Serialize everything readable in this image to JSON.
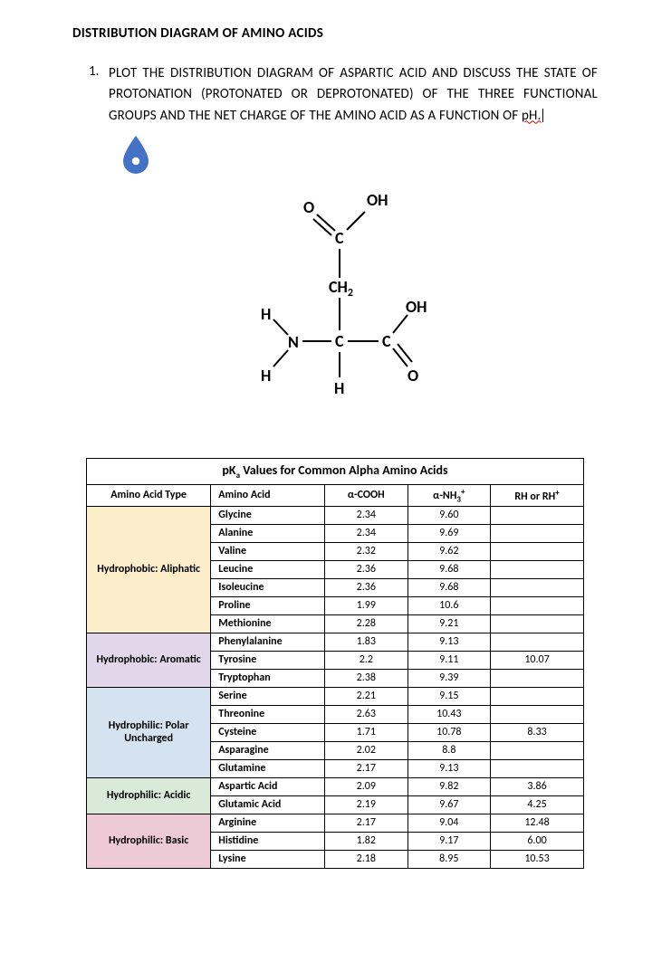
{
  "title": "DISTRIBUTION DIAGRAM OF AMINO ACIDS",
  "question": {
    "number": "1.",
    "text_before": "PLOT THE DISTRIBUTION DIAGRAM OF ASPARTIC ACID AND DISCUSS THE STATE OF PROTONATION (PROTONATED OR DEPROTONATED) OF THE THREE FUNCTIONAL GROUPS AND THE NET CHARGE OF THE AMINO ACID AS A FUNCTION OF ",
    "wavy_word": "pH."
  },
  "drop_icon": {
    "fill": "#4472c4"
  },
  "structure": {
    "labels": [
      "O",
      "OH",
      "C",
      "CH",
      "H",
      "N",
      "OH",
      "C",
      "C",
      "H",
      "H",
      "O"
    ],
    "font": "serif",
    "color": "#000000"
  },
  "table": {
    "title_prefix": "pK",
    "title_sub": "a",
    "title_suffix": " Values for Common Alpha Amino Acids",
    "headers": {
      "c0": "Amino Acid Type",
      "c1": "Amino Acid",
      "c2_pre": "α-COOH",
      "c3_pre": "α-NH",
      "c3_sub": "3",
      "c3_sup": "+",
      "c4_pre": "RH or RH",
      "c4_sup": "+"
    },
    "groups": [
      {
        "label": "Hydrophobic: Aliphatic",
        "bg": "#fdeecb",
        "rows": [
          {
            "name": "Glycine",
            "cooh": "2.34",
            "nh3": "9.60",
            "r": ""
          },
          {
            "name": "Alanine",
            "cooh": "2.34",
            "nh3": "9.69",
            "r": ""
          },
          {
            "name": "Valine",
            "cooh": "2.32",
            "nh3": "9.62",
            "r": ""
          },
          {
            "name": "Leucine",
            "cooh": "2.36",
            "nh3": "9.68",
            "r": ""
          },
          {
            "name": "Isoleucine",
            "cooh": "2.36",
            "nh3": "9.68",
            "r": ""
          },
          {
            "name": "Proline",
            "cooh": "1.99",
            "nh3": "10.6",
            "r": ""
          },
          {
            "name": "Methionine",
            "cooh": "2.28",
            "nh3": "9.21",
            "r": ""
          }
        ]
      },
      {
        "label": "Hydrophobic: Aromatic",
        "bg": "#e2d7ea",
        "rows": [
          {
            "name": "Phenylalanine",
            "cooh": "1.83",
            "nh3": "9.13",
            "r": ""
          },
          {
            "name": "Tyrosine",
            "cooh": "2.2",
            "nh3": "9.11",
            "r": "10.07"
          },
          {
            "name": "Tryptophan",
            "cooh": "2.38",
            "nh3": "9.39",
            "r": ""
          }
        ]
      },
      {
        "label": "Hydrophilic: Polar Uncharged",
        "bg": "#d5e3f0",
        "rows": [
          {
            "name": "Serine",
            "cooh": "2.21",
            "nh3": "9.15",
            "r": ""
          },
          {
            "name": "Threonine",
            "cooh": "2.63",
            "nh3": "10.43",
            "r": ""
          },
          {
            "name": "Cysteine",
            "cooh": "1.71",
            "nh3": "10.78",
            "r": "8.33"
          },
          {
            "name": "Asparagine",
            "cooh": "2.02",
            "nh3": "8.8",
            "r": ""
          },
          {
            "name": "Glutamine",
            "cooh": "2.17",
            "nh3": "9.13",
            "r": ""
          }
        ]
      },
      {
        "label": "Hydrophilic: Acidic",
        "bg": "#d9ead9",
        "rows": [
          {
            "name": "Aspartic Acid",
            "cooh": "2.09",
            "nh3": "9.82",
            "r": "3.86"
          },
          {
            "name": "Glutamic Acid",
            "cooh": "2.19",
            "nh3": "9.67",
            "r": "4.25"
          }
        ]
      },
      {
        "label": "Hydrophilic: Basic",
        "bg": "#eec9d6",
        "rows": [
          {
            "name": "Arginine",
            "cooh": "2.17",
            "nh3": "9.04",
            "r": "12.48"
          },
          {
            "name": "Histidine",
            "cooh": "1.82",
            "nh3": "9.17",
            "r": "6.00"
          },
          {
            "name": "Lysine",
            "cooh": "2.18",
            "nh3": "8.95",
            "r": "10.53"
          }
        ]
      }
    ]
  }
}
